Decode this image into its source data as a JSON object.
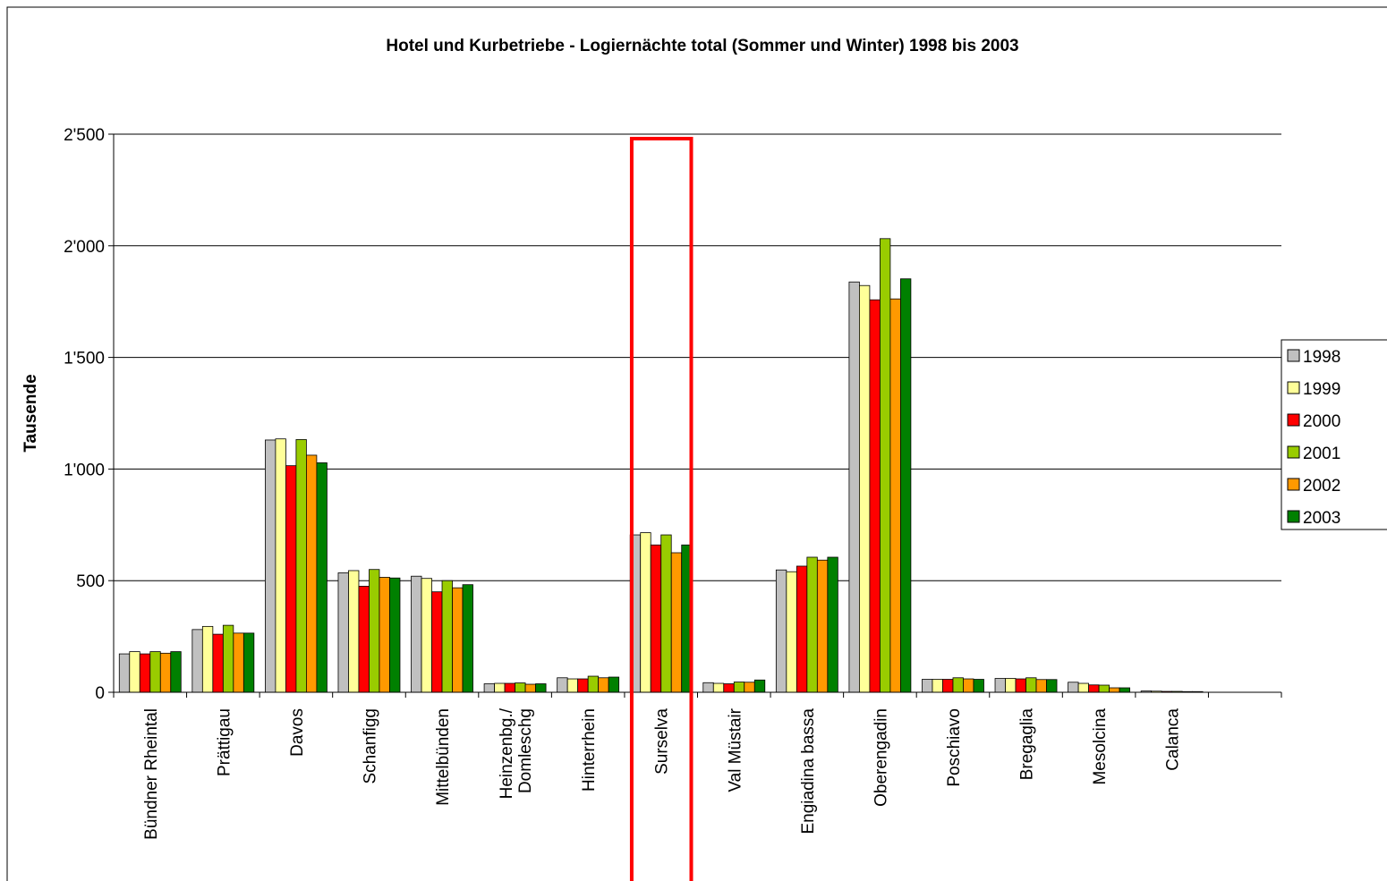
{
  "chart_data": {
    "type": "bar",
    "title": "Hotel und Kurbetriebe - Logiernächte total (Sommer und Winter) 1998 bis 2003",
    "xlabel": "",
    "ylabel": "Tausende",
    "ylim": [
      0,
      2500
    ],
    "yticks": [
      {
        "value": 0,
        "label": "0"
      },
      {
        "value": 500,
        "label": "500"
      },
      {
        "value": 1000,
        "label": "1'000"
      },
      {
        "value": 1500,
        "label": "1'500"
      },
      {
        "value": 2000,
        "label": "2'000"
      },
      {
        "value": 2500,
        "label": "2'500"
      }
    ],
    "grid": true,
    "legend": "right",
    "categories": [
      {
        "lines": [
          "Bündner Rheintal"
        ]
      },
      {
        "lines": [
          "Prättigau"
        ]
      },
      {
        "lines": [
          "Davos"
        ]
      },
      {
        "lines": [
          "Schanfigg"
        ]
      },
      {
        "lines": [
          "Mittelbünden"
        ]
      },
      {
        "lines": [
          "Heinzenbg./",
          "Domleschg"
        ]
      },
      {
        "lines": [
          "Hinterrhein"
        ]
      },
      {
        "lines": [
          "Surselva"
        ]
      },
      {
        "lines": [
          "Val Müstair"
        ]
      },
      {
        "lines": [
          "Engiadina bassa"
        ]
      },
      {
        "lines": [
          "Oberengadin"
        ]
      },
      {
        "lines": [
          "Poschiavo"
        ]
      },
      {
        "lines": [
          "Bregaglia"
        ]
      },
      {
        "lines": [
          "Mesolcina"
        ]
      },
      {
        "lines": [
          "Calanca"
        ]
      },
      {
        "lines": [
          ""
        ]
      }
    ],
    "highlight_category": 7,
    "highlight_color": "#ff0000",
    "series": [
      {
        "name": "1998",
        "color": "#c0c0c0",
        "values": [
          172,
          281,
          1130,
          535,
          520,
          38,
          65,
          705,
          43,
          548,
          1838,
          58,
          62,
          45,
          6,
          null
        ]
      },
      {
        "name": "1999",
        "color": "#ffff99",
        "values": [
          182,
          295,
          1135,
          545,
          510,
          40,
          60,
          715,
          40,
          540,
          1822,
          58,
          62,
          40,
          5,
          null
        ]
      },
      {
        "name": "2000",
        "color": "#ff0000",
        "values": [
          172,
          260,
          1015,
          475,
          450,
          40,
          60,
          660,
          38,
          565,
          1758,
          58,
          60,
          33,
          4,
          null
        ]
      },
      {
        "name": "2001",
        "color": "#99cc00",
        "values": [
          182,
          300,
          1132,
          550,
          500,
          42,
          72,
          705,
          46,
          605,
          2032,
          65,
          65,
          32,
          4,
          null
        ]
      },
      {
        "name": "2002",
        "color": "#ff9900",
        "values": [
          175,
          265,
          1062,
          515,
          468,
          36,
          65,
          625,
          45,
          592,
          1762,
          60,
          57,
          20,
          3,
          null
        ]
      },
      {
        "name": "2003",
        "color": "#008000",
        "values": [
          182,
          265,
          1028,
          512,
          482,
          38,
          68,
          660,
          55,
          605,
          1852,
          58,
          57,
          20,
          3,
          null
        ]
      }
    ]
  }
}
